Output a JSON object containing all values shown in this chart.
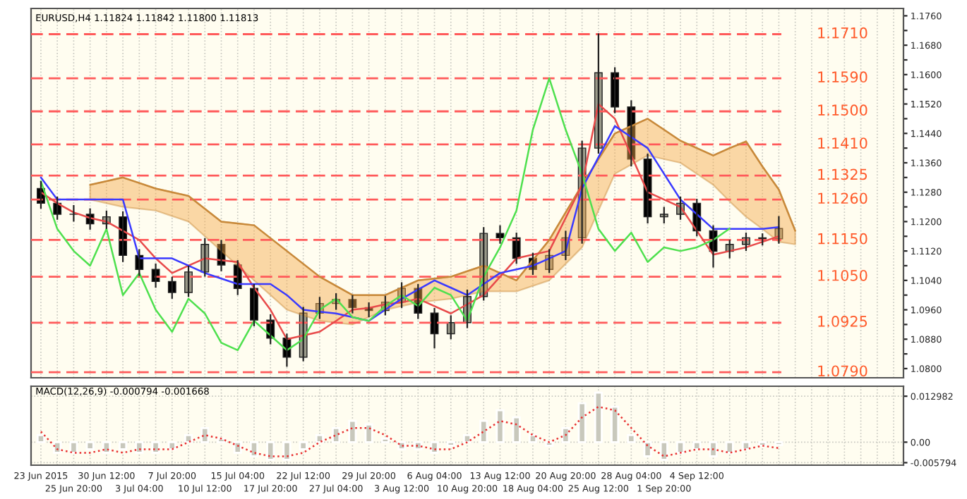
{
  "chart_data": [
    {
      "type": "candlestick",
      "title": "EURUSD,H4 1.11824 1.11842 1.11800 1.11813",
      "categories": [
        null,
        null,
        null,
        null,
        null,
        null,
        null,
        null,
        null,
        null,
        null,
        null,
        null,
        null,
        null,
        null,
        null,
        null,
        null,
        null,
        null,
        null,
        null,
        null,
        null,
        null,
        null,
        null,
        null,
        null,
        null,
        null,
        null,
        null,
        null,
        null,
        null,
        null,
        null,
        null,
        null,
        null,
        null,
        null,
        null,
        null,
        null,
        null,
        null,
        null,
        null,
        null,
        null
      ],
      "ohlc": [
        [
          1.129,
          1.131,
          1.1235,
          1.125
        ],
        [
          1.125,
          1.1268,
          1.1205,
          1.122
        ],
        [
          1.122,
          1.1245,
          1.12,
          1.122
        ],
        [
          1.122,
          1.1236,
          1.1178,
          1.1194
        ],
        [
          1.1194,
          1.123,
          1.118,
          1.1213
        ],
        [
          1.1213,
          1.1228,
          1.109,
          1.1108
        ],
        [
          1.1108,
          1.1125,
          1.1052,
          1.107
        ],
        [
          1.107,
          1.1086,
          1.102,
          1.1037
        ],
        [
          1.1037,
          1.105,
          1.099,
          1.1007
        ],
        [
          1.1007,
          1.108,
          1.0995,
          1.1063
        ],
        [
          1.1063,
          1.1155,
          1.105,
          1.1138
        ],
        [
          1.1138,
          1.115,
          1.1065,
          1.1082
        ],
        [
          1.1082,
          1.1095,
          1.1,
          1.1018
        ],
        [
          1.1018,
          1.103,
          1.0915,
          1.0932
        ],
        [
          1.0932,
          1.0948,
          1.0866,
          1.0883
        ],
        [
          1.0883,
          1.0895,
          1.0805,
          1.0831
        ],
        [
          1.0831,
          1.0968,
          1.082,
          1.0951
        ],
        [
          1.0951,
          1.0995,
          1.0935,
          1.0977
        ],
        [
          1.0977,
          1.1005,
          1.096,
          1.0988
        ],
        [
          1.0988,
          1.1,
          1.095,
          1.0966
        ],
        [
          1.0966,
          1.098,
          1.094,
          1.0958
        ],
        [
          1.0958,
          1.0998,
          1.0945,
          1.0981
        ],
        [
          1.0981,
          1.1035,
          1.0965,
          1.1018
        ],
        [
          1.1018,
          1.103,
          1.0935,
          1.0951
        ],
        [
          1.0951,
          1.0965,
          1.0855,
          1.0895
        ],
        [
          1.0895,
          1.0945,
          1.088,
          1.0925
        ],
        [
          1.0925,
          1.1015,
          1.091,
          1.0996
        ],
        [
          1.0996,
          1.1185,
          1.0985,
          1.1168
        ],
        [
          1.1168,
          1.119,
          1.114,
          1.1156
        ],
        [
          1.1156,
          1.117,
          1.1085,
          1.11
        ],
        [
          1.11,
          1.1115,
          1.1055,
          1.107
        ],
        [
          1.107,
          1.1125,
          1.106,
          1.1108
        ],
        [
          1.1108,
          1.1175,
          1.1095,
          1.1156
        ],
        [
          1.1156,
          1.142,
          1.114,
          1.14
        ],
        [
          1.14,
          1.1712,
          1.1385,
          1.1605
        ],
        [
          1.1605,
          1.162,
          1.1495,
          1.1512
        ],
        [
          1.1512,
          1.153,
          1.135,
          1.137
        ],
        [
          1.137,
          1.1385,
          1.1195,
          1.1213
        ],
        [
          1.1213,
          1.124,
          1.1195,
          1.122
        ],
        [
          1.122,
          1.1268,
          1.1205,
          1.125
        ],
        [
          1.125,
          1.1262,
          1.116,
          1.1175
        ],
        [
          1.1175,
          1.119,
          1.1075,
          1.1119
        ],
        [
          1.1119,
          1.115,
          1.11,
          1.1138
        ],
        [
          1.1138,
          1.117,
          1.112,
          1.1156
        ],
        [
          1.1156,
          1.1168,
          1.1135,
          1.1153
        ],
        [
          1.1153,
          1.1215,
          1.114,
          1.1181
        ],
        null,
        null,
        null,
        null,
        null,
        null,
        null
      ],
      "colors": [
        "#000000",
        "#000000",
        "#000000",
        "#000000",
        "#9a9a8a",
        "#000000",
        "#000000",
        "#000000",
        "#000000",
        "#9a9a8a",
        "#9a9a8a",
        "#000000",
        "#000000",
        "#000000",
        "#000000",
        "#000000",
        "#9a9a8a",
        "#9a9a8a",
        "#9a9a8a",
        "#000000",
        "#000000",
        "#9a9a8a",
        "#9a9a8a",
        "#000000",
        "#000000",
        "#9a9a8a",
        "#9a9a8a",
        "#9a9a8a",
        "#000000",
        "#000000",
        "#000000",
        "#9a9a8a",
        "#9a9a8a",
        "#9a9a8a",
        "#9a9a8a",
        "#000000",
        "#000000",
        "#000000",
        "#9a9a8a",
        "#9a9a8a",
        "#000000",
        "#000000",
        "#9a9a8a",
        "#9a9a8a",
        "#000000",
        "#9a9a8a",
        null,
        null,
        null,
        null,
        null,
        null,
        null
      ],
      "series": [
        {
          "type": "line",
          "color": "#c8893a",
          "values": [
            null,
            null,
            null,
            1.13,
            1.131,
            1.132,
            1.1305,
            1.129,
            1.128,
            1.127,
            1.1235,
            1.12,
            1.1195,
            1.119,
            1.1155,
            1.112,
            1.1085,
            1.105,
            1.1025,
            1.1,
            1.1,
            1.1,
            1.102,
            1.104,
            1.1045,
            1.105,
            1.1065,
            1.108,
            1.106,
            1.104,
            1.1095,
            1.115,
            1.1225,
            1.13,
            1.137,
            1.144,
            1.146,
            1.148,
            1.145,
            1.142,
            1.14,
            1.138,
            1.14,
            1.1418,
            1.135,
            1.1287,
            1.1175,
            null,
            null,
            null,
            null,
            null,
            null
          ],
          "upper": [
            null,
            null,
            null,
            1.13,
            1.131,
            1.132,
            1.1305,
            1.129,
            1.128,
            1.127,
            1.1235,
            1.12,
            1.1195,
            1.119,
            1.1155,
            1.112,
            1.1085,
            1.105,
            1.1025,
            1.1,
            1.1,
            1.1,
            1.102,
            1.104,
            1.1045,
            1.105,
            1.1065,
            1.108,
            1.106,
            1.104,
            1.1095,
            1.115,
            1.1225,
            1.13,
            1.137,
            1.144,
            1.146,
            1.148,
            1.145,
            1.142,
            1.14,
            1.138,
            1.14,
            1.1418,
            1.135,
            1.1287,
            1.1175,
            null,
            null,
            null,
            null,
            null,
            null
          ],
          "lower": [
            null,
            null,
            null,
            1.126,
            1.125,
            1.124,
            1.1235,
            1.123,
            1.1215,
            1.12,
            1.116,
            1.112,
            1.108,
            1.104,
            1.1,
            1.096,
            1.0945,
            1.093,
            1.0925,
            1.092,
            1.094,
            1.096,
            1.097,
            1.098,
            1.0985,
            1.099,
            1.1,
            1.101,
            1.101,
            1.101,
            1.1025,
            1.104,
            1.1085,
            1.113,
            1.123,
            1.133,
            1.1355,
            1.138,
            1.137,
            1.136,
            1.133,
            1.13,
            1.1255,
            1.1213,
            1.118,
            1.1145,
            1.1138,
            null,
            null,
            null,
            null,
            null,
            null
          ]
        },
        {
          "type": "line",
          "color": "#e84a4a",
          "values": [
            1.128,
            1.125,
            1.1225,
            1.121,
            1.12,
            1.1175,
            1.115,
            1.11,
            1.106,
            1.108,
            1.11,
            1.1095,
            1.109,
            1.102,
            1.096,
            1.088,
            1.089,
            1.09,
            1.093,
            1.096,
            1.0965,
            1.0975,
            1.098,
            1.099,
            1.097,
            1.095,
            1.0975,
            1.1,
            1.105,
            1.11,
            1.111,
            1.112,
            1.121,
            1.13,
            1.152,
            1.148,
            1.138,
            1.128,
            1.126,
            1.124,
            1.1175,
            1.111,
            1.112,
            1.113,
            1.1145,
            1.116,
            null,
            null,
            null,
            null,
            null,
            null,
            null
          ]
        },
        {
          "type": "line",
          "color": "#3a3aff",
          "values": [
            1.132,
            1.126,
            1.126,
            1.126,
            1.126,
            1.126,
            1.11,
            1.11,
            1.11,
            1.108,
            1.106,
            1.1045,
            1.103,
            1.103,
            1.103,
            1.1,
            1.096,
            1.0955,
            1.095,
            1.094,
            1.093,
            1.096,
            1.099,
            1.1015,
            1.104,
            1.102,
            1.1,
            1.103,
            1.106,
            1.107,
            1.108,
            1.11,
            1.112,
            1.129,
            1.1375,
            1.146,
            1.143,
            1.14,
            1.133,
            1.126,
            1.122,
            1.118,
            1.118,
            1.118,
            1.118,
            1.1185,
            null,
            null,
            null,
            null,
            null,
            null,
            null
          ]
        },
        {
          "type": "line",
          "color": "#4ee04e",
          "values": [
            1.131,
            1.118,
            1.112,
            1.108,
            1.118,
            1.1,
            1.106,
            1.096,
            1.09,
            1.099,
            1.095,
            1.087,
            1.085,
            1.093,
            1.089,
            1.085,
            1.088,
            1.096,
            1.099,
            1.094,
            1.093,
            1.097,
            1.1,
            1.097,
            1.102,
            1.1,
            1.093,
            1.105,
            1.113,
            1.123,
            1.145,
            1.159,
            1.145,
            1.133,
            1.118,
            1.112,
            1.117,
            1.109,
            1.113,
            1.112,
            1.113,
            1.115,
            1.1181,
            null,
            null,
            null,
            null,
            null,
            null,
            null,
            null,
            null,
            null
          ]
        }
      ],
      "ref_lines": [
        {
          "axis": "y",
          "value": 1.171,
          "label": "1.1710",
          "color": "#ff5a5a",
          "line_style": "dashed"
        },
        {
          "axis": "y",
          "value": 1.159,
          "label": "1.1590",
          "color": "#ff5a5a",
          "line_style": "dashed"
        },
        {
          "axis": "y",
          "value": 1.15,
          "label": "1.1500",
          "color": "#ff5a5a",
          "line_style": "dashed"
        },
        {
          "axis": "y",
          "value": 1.141,
          "label": "1.1410",
          "color": "#ff5a5a",
          "line_style": "dashed"
        },
        {
          "axis": "y",
          "value": 1.1325,
          "label": "1.1325",
          "color": "#ff5a5a",
          "line_style": "dashed"
        },
        {
          "axis": "y",
          "value": 1.126,
          "label": "1.1260",
          "color": "#ff5a5a",
          "line_style": "dashed"
        },
        {
          "axis": "y",
          "value": 1.115,
          "label": "1.1150",
          "color": "#ff5a5a",
          "line_style": "dashed"
        },
        {
          "axis": "y",
          "value": 1.105,
          "label": "1.1050",
          "color": "#ff5a5a",
          "line_style": "dashed"
        },
        {
          "axis": "y",
          "value": 1.0925,
          "label": "1.0925",
          "color": "#ff5a5a",
          "line_style": "dashed"
        },
        {
          "axis": "y",
          "value": 1.079,
          "label": "1.0790",
          "color": "#ff5a5a",
          "line_style": "dashed"
        }
      ],
      "ylim": [
        1.0775,
        1.178
      ],
      "yticks": [
        {
          "value": 1.08,
          "label": "1.0800"
        },
        {
          "value": 1.084,
          "label": null
        },
        {
          "value": 1.088,
          "label": "1.0880"
        },
        {
          "value": 1.092,
          "label": null
        },
        {
          "value": 1.096,
          "label": "1.0960"
        },
        {
          "value": 1.1,
          "label": null
        },
        {
          "value": 1.104,
          "label": "1.1040"
        },
        {
          "value": 1.108,
          "label": null
        },
        {
          "value": 1.112,
          "label": "1.1120"
        },
        {
          "value": 1.116,
          "label": null
        },
        {
          "value": 1.12,
          "label": "1.1200"
        },
        {
          "value": 1.124,
          "label": null
        },
        {
          "value": 1.128,
          "label": "1.1280"
        },
        {
          "value": 1.132,
          "label": null
        },
        {
          "value": 1.136,
          "label": "1.1360"
        },
        {
          "value": 1.14,
          "label": null
        },
        {
          "value": 1.144,
          "label": "1.1440"
        },
        {
          "value": 1.148,
          "label": null
        },
        {
          "value": 1.152,
          "label": "1.1520"
        },
        {
          "value": 1.156,
          "label": null
        },
        {
          "value": 1.16,
          "label": "1.1600"
        },
        {
          "value": 1.164,
          "label": null
        },
        {
          "value": 1.168,
          "label": "1.1680"
        },
        {
          "value": 1.172,
          "label": null
        },
        {
          "value": 1.176,
          "label": "1.1760"
        }
      ],
      "tick_labels": "y",
      "grid": "x"
    },
    {
      "type": "bar",
      "title": "MACD(12,26,9) -0.000794 -0.001668",
      "categories": [
        "23 Jun 2015",
        null,
        "25 Jun 20:00",
        null,
        "30 Jun 12:00",
        null,
        "3 Jul 04:00",
        null,
        "7 Jul 20:00",
        null,
        "10 Jul 12:00",
        null,
        "15 Jul 04:00",
        null,
        "17 Jul 20:00",
        null,
        "22 Jul 12:00",
        null,
        "27 Jul 04:00",
        null,
        "29 Jul 20:00",
        null,
        "3 Aug 12:00",
        null,
        "6 Aug 04:00",
        null,
        "10 Aug 20:00",
        null,
        "13 Aug 12:00",
        null,
        "18 Aug 04:00",
        null,
        "20 Aug 20:00",
        null,
        "25 Aug 12:00",
        null,
        "28 Aug 04:00",
        null,
        "1 Sep 20:00",
        null,
        "4 Sep 12:00",
        null,
        null,
        null,
        null,
        null,
        null,
        null,
        null,
        null,
        null,
        null,
        null
      ],
      "series": [
        {
          "type": "bar",
          "color": "#c8c8bc",
          "values": [
            0.002,
            -0.003,
            -0.003,
            -0.002,
            -0.003,
            -0.002,
            -0.003,
            -0.003,
            -0.002,
            0.002,
            0.004,
            0.001,
            -0.003,
            -0.004,
            -0.005,
            -0.005,
            -0.002,
            0.002,
            0.004,
            0.006,
            0.005,
            0.001,
            -0.002,
            -0.002,
            -0.003,
            -0.001,
            0.002,
            0.006,
            0.009,
            0.007,
            0.002,
            -0.001,
            0.004,
            0.011,
            0.014,
            0.01,
            0.002,
            -0.004,
            -0.005,
            -0.003,
            -0.002,
            -0.004,
            -0.003,
            -0.002,
            -0.001,
            -0.0008,
            null,
            null,
            null,
            null,
            null,
            null,
            null
          ]
        },
        {
          "type": "line",
          "color": "#e83030",
          "line_style": "dotted",
          "values": [
            0.003,
            -0.002,
            -0.003,
            -0.003,
            -0.002,
            -0.003,
            -0.002,
            -0.002,
            -0.002,
            0.0,
            0.002,
            0.001,
            -0.001,
            -0.003,
            -0.004,
            -0.004,
            -0.003,
            0.0,
            0.002,
            0.004,
            0.004,
            0.002,
            -0.001,
            -0.001,
            -0.002,
            -0.002,
            0.0,
            0.003,
            0.006,
            0.005,
            0.002,
            0.0,
            0.002,
            0.007,
            0.01,
            0.009,
            0.004,
            -0.001,
            -0.004,
            -0.003,
            -0.002,
            -0.002,
            -0.003,
            -0.002,
            -0.001,
            -0.0017,
            null,
            null,
            null,
            null,
            null,
            null,
            null
          ]
        }
      ],
      "ylim": [
        -0.0065,
        0.0158
      ],
      "yticks": [
        {
          "value": -0.005794,
          "label": "-0.005794"
        },
        {
          "value": 0,
          "label": "0.00"
        },
        {
          "value": 0.012982,
          "label": "0.012982"
        }
      ],
      "grid": true
    }
  ]
}
